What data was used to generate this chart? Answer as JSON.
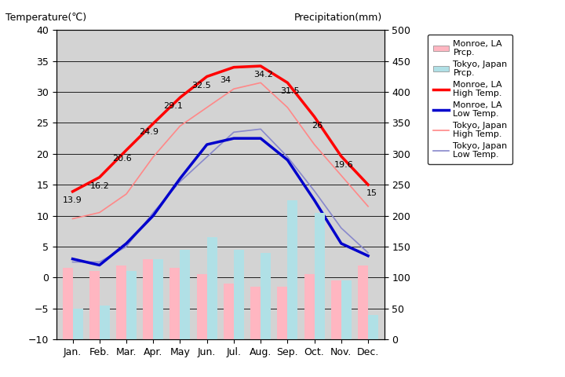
{
  "months": [
    "Jan.",
    "Feb.",
    "Mar.",
    "Apr.",
    "May",
    "Jun.",
    "Jul.",
    "Aug.",
    "Sep.",
    "Oct.",
    "Nov.",
    "Dec."
  ],
  "monroe_high": [
    13.9,
    16.2,
    20.6,
    24.9,
    29.1,
    32.5,
    34,
    34.2,
    31.5,
    26,
    19.6,
    15
  ],
  "monroe_low": [
    3.0,
    2.0,
    5.5,
    10.0,
    16.0,
    21.5,
    22.5,
    22.5,
    19.0,
    12.5,
    5.5,
    3.5
  ],
  "tokyo_high": [
    9.5,
    10.5,
    13.5,
    19.5,
    24.5,
    27.5,
    30.5,
    31.5,
    27.5,
    21.5,
    16.5,
    11.5
  ],
  "tokyo_low": [
    2.5,
    2.5,
    5.0,
    10.5,
    15.5,
    19.5,
    23.5,
    24.0,
    19.5,
    14.0,
    8.0,
    4.0
  ],
  "monroe_prcp_mm": [
    115,
    110,
    120,
    130,
    115,
    105,
    90,
    85,
    85,
    105,
    95,
    120
  ],
  "tokyo_prcp_mm": [
    50,
    55,
    110,
    130,
    145,
    165,
    145,
    140,
    225,
    205,
    95,
    40
  ],
  "monroe_high_labels": [
    "13.9",
    "16.2",
    "20.6",
    "24.9",
    "29.1",
    "32.5",
    "34",
    "34.2",
    "31.5",
    "26",
    "19.6",
    "15"
  ],
  "temp_ylim": [
    -10,
    40
  ],
  "prcp_ylim": [
    0,
    500
  ],
  "background_color": "#d3d3d3",
  "plot_bg_color": "#c8c8c8",
  "monroe_high_color": "#ff0000",
  "monroe_low_color": "#0000cc",
  "tokyo_high_color": "#ff8888",
  "tokyo_low_color": "#8888cc",
  "monroe_prcp_color": "#ffb6c1",
  "tokyo_prcp_color": "#b0e0e6",
  "title_left": "Temperature(℃)",
  "title_right": "Precipitation(mm)"
}
